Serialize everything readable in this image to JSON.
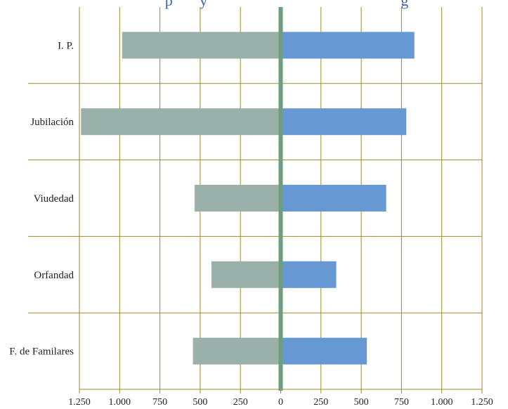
{
  "chart_data": {
    "type": "bar",
    "orientation": "horizontal-diverging",
    "title_visible_fragment": "p       y                                                  g",
    "categories": [
      "I. P.",
      "Jubilación",
      "Viudedad",
      "Orfandad",
      "F. de Familares"
    ],
    "series": [
      {
        "side": "left",
        "values": [
          985,
          1240,
          535,
          430,
          545
        ]
      },
      {
        "side": "right",
        "values": [
          830,
          780,
          655,
          345,
          535
        ]
      }
    ],
    "xlim": [
      -1250,
      1250
    ],
    "xticks": [
      -1250,
      -1000,
      -750,
      -500,
      -250,
      0,
      250,
      500,
      750,
      1000,
      1250
    ],
    "xtick_labels": [
      "1.250",
      "1.000",
      "750",
      "500",
      "250",
      "0",
      "250",
      "500",
      "750",
      "1.000",
      "1.250"
    ],
    "grid": true,
    "legend": "none",
    "colors": {
      "left_bar": "#9ab0ab",
      "right_bar": "#6699d4",
      "zero_line": "#6e9e7e",
      "grid": "#a08a2a",
      "title": "#3a66a8"
    }
  }
}
